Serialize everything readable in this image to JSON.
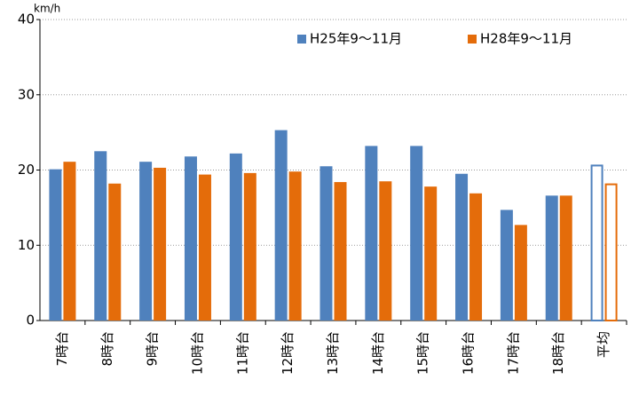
{
  "chart_data": {
    "type": "bar",
    "y_unit": "km/h",
    "categories": [
      "7時台",
      "8時台",
      "9時台",
      "10時台",
      "11時台",
      "12時台",
      "13時台",
      "14時台",
      "15時台",
      "16時台",
      "17時台",
      "18時台",
      "平均"
    ],
    "series": [
      {
        "name": "H25年9～11月",
        "color": "#4f81bd",
        "values": [
          20.1,
          22.5,
          21.1,
          21.8,
          22.2,
          25.3,
          20.5,
          23.2,
          23.2,
          19.5,
          14.7,
          16.6,
          20.6
        ]
      },
      {
        "name": "H28年9～11月",
        "color": "#e46c0a",
        "values": [
          21.1,
          18.2,
          20.3,
          19.4,
          19.6,
          19.8,
          18.4,
          18.5,
          17.8,
          16.9,
          12.7,
          16.6,
          18.1
        ]
      }
    ],
    "outlined_category_index": 12,
    "ylim": [
      0,
      40
    ],
    "yticks": [
      0,
      10,
      20,
      30,
      40
    ],
    "grid": true,
    "legend": "top-right"
  }
}
